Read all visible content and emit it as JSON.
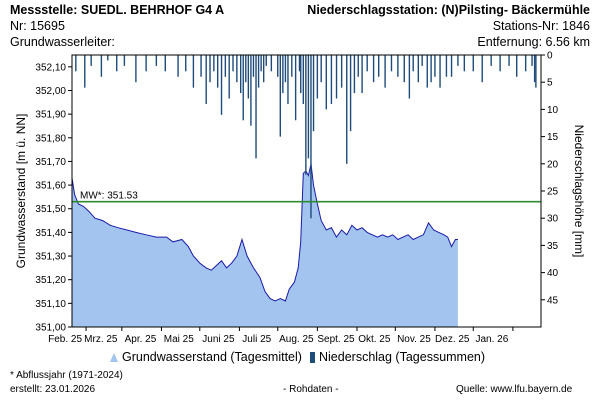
{
  "header": {
    "station_label": "Messstelle: SUEDL. BEHRHOF G4 A",
    "number": "Nr: 15695",
    "aquifer": "Grundwasserleiter:",
    "precip_station": "Niederschlagsstation: (N)Pilsting- Bäckermühle",
    "precip_station_nr": "Stations-Nr: 1846",
    "distance": "Entfernung: 6.56 km"
  },
  "footer": {
    "abfluss_note": "* Abflussjahr (1971-2024)",
    "created": "erstellt:  23.01.2026",
    "raw": "- Rohdaten -",
    "source": "Quelle:  www.lfu.bayern.de"
  },
  "colors": {
    "area_fill": "#a3c4ee",
    "area_line": "#1a1aa8",
    "precip": "#1e4b7a",
    "mean_line": "#2e8b2e"
  },
  "chart_data": {
    "type": "area",
    "xlabel": "",
    "ylabel": "Grundwasserstand [m ü. NN]",
    "y2label": "Niederschlagshöhe [mm]",
    "ylim": [
      351.0,
      352.15
    ],
    "y2lim": [
      0,
      50
    ],
    "y2_inverted": true,
    "yticks": [
      "352,10",
      "352,00",
      "351,90",
      "351,80",
      "351,70",
      "351,60",
      "351,50",
      "351,40",
      "351,30",
      "351,20",
      "351,10",
      "351,00"
    ],
    "y2ticks": [
      "0",
      "5",
      "10",
      "15",
      "20",
      "25",
      "30",
      "35",
      "40",
      "45"
    ],
    "xticks": [
      "Feb. 25",
      "Mrz. 25",
      "Apr. 25",
      "Mai 25",
      "Juni 25",
      "Juli 25",
      "Aug. 25",
      "Sept. 25",
      "Okt. 25",
      "Nov. 25",
      "Dez. 25",
      "Jan. 26"
    ],
    "xrange": [
      "2025-01-21",
      "2026-01-23"
    ],
    "mean_line": {
      "label": "MW*: 351.53",
      "value": 351.53
    },
    "series": [
      {
        "name": "Grundwasserstand (Tagesmittel)",
        "kind": "area",
        "points": [
          [
            "2025-01-21",
            351.63
          ],
          [
            "2025-01-23",
            351.56
          ],
          [
            "2025-01-26",
            351.52
          ],
          [
            "2025-01-30",
            351.51
          ],
          [
            "2025-02-03",
            351.49
          ],
          [
            "2025-02-08",
            351.46
          ],
          [
            "2025-02-14",
            351.45
          ],
          [
            "2025-02-20",
            351.43
          ],
          [
            "2025-02-26",
            351.42
          ],
          [
            "2025-03-05",
            351.41
          ],
          [
            "2025-03-12",
            351.4
          ],
          [
            "2025-03-20",
            351.39
          ],
          [
            "2025-03-28",
            351.38
          ],
          [
            "2025-04-05",
            351.38
          ],
          [
            "2025-04-10",
            351.36
          ],
          [
            "2025-04-17",
            351.37
          ],
          [
            "2025-04-22",
            351.34
          ],
          [
            "2025-04-26",
            351.3
          ],
          [
            "2025-05-01",
            351.27
          ],
          [
            "2025-05-06",
            351.25
          ],
          [
            "2025-05-10",
            351.24
          ],
          [
            "2025-05-14",
            351.26
          ],
          [
            "2025-05-18",
            351.28
          ],
          [
            "2025-05-22",
            351.25
          ],
          [
            "2025-05-26",
            351.27
          ],
          [
            "2025-05-30",
            351.3
          ],
          [
            "2025-06-03",
            351.37
          ],
          [
            "2025-06-07",
            351.3
          ],
          [
            "2025-06-12",
            351.25
          ],
          [
            "2025-06-17",
            351.21
          ],
          [
            "2025-06-21",
            351.15
          ],
          [
            "2025-06-25",
            351.12
          ],
          [
            "2025-06-29",
            351.11
          ],
          [
            "2025-07-03",
            351.12
          ],
          [
            "2025-07-07",
            351.11
          ],
          [
            "2025-07-10",
            351.16
          ],
          [
            "2025-07-14",
            351.19
          ],
          [
            "2025-07-17",
            351.25
          ],
          [
            "2025-07-19",
            351.36
          ],
          [
            "2025-07-21",
            351.65
          ],
          [
            "2025-07-23",
            351.66
          ],
          [
            "2025-07-25",
            351.64
          ],
          [
            "2025-07-27",
            351.69
          ],
          [
            "2025-07-29",
            351.6
          ],
          [
            "2025-08-01",
            351.52
          ],
          [
            "2025-08-04",
            351.45
          ],
          [
            "2025-08-08",
            351.41
          ],
          [
            "2025-08-12",
            351.42
          ],
          [
            "2025-08-16",
            351.38
          ],
          [
            "2025-08-20",
            351.41
          ],
          [
            "2025-08-24",
            351.39
          ],
          [
            "2025-08-28",
            351.43
          ],
          [
            "2025-09-01",
            351.41
          ],
          [
            "2025-09-05",
            351.42
          ],
          [
            "2025-09-09",
            351.4
          ],
          [
            "2025-09-13",
            351.39
          ],
          [
            "2025-09-17",
            351.38
          ],
          [
            "2025-09-21",
            351.39
          ],
          [
            "2025-09-25",
            351.38
          ],
          [
            "2025-09-29",
            351.39
          ],
          [
            "2025-10-03",
            351.37
          ],
          [
            "2025-10-07",
            351.38
          ],
          [
            "2025-10-11",
            351.39
          ],
          [
            "2025-10-15",
            351.37
          ],
          [
            "2025-10-19",
            351.38
          ],
          [
            "2025-10-23",
            351.39
          ],
          [
            "2025-10-27",
            351.44
          ],
          [
            "2025-10-31",
            351.41
          ],
          [
            "2025-11-04",
            351.4
          ],
          [
            "2025-11-08",
            351.39
          ],
          [
            "2025-11-11",
            351.38
          ],
          [
            "2025-11-14",
            351.34
          ],
          [
            "2025-11-17",
            351.37
          ],
          [
            "2025-11-19",
            351.37
          ]
        ]
      },
      {
        "name": "Niederschlag (Tagessummen)",
        "kind": "bar",
        "y_axis": "right",
        "points": [
          [
            "2025-01-24",
            3
          ],
          [
            "2025-01-31",
            6
          ],
          [
            "2025-02-05",
            2
          ],
          [
            "2025-02-13",
            4
          ],
          [
            "2025-02-18",
            1
          ],
          [
            "2025-02-25",
            3
          ],
          [
            "2025-03-03",
            2
          ],
          [
            "2025-03-12",
            5
          ],
          [
            "2025-03-20",
            3
          ],
          [
            "2025-03-28",
            2
          ],
          [
            "2025-04-04",
            3
          ],
          [
            "2025-04-14",
            4
          ],
          [
            "2025-04-20",
            3
          ],
          [
            "2025-04-26",
            6
          ],
          [
            "2025-05-02",
            4
          ],
          [
            "2025-05-06",
            9
          ],
          [
            "2025-05-09",
            5
          ],
          [
            "2025-05-12",
            3
          ],
          [
            "2025-05-15",
            6
          ],
          [
            "2025-05-18",
            11
          ],
          [
            "2025-05-21",
            4
          ],
          [
            "2025-05-24",
            8
          ],
          [
            "2025-05-27",
            3
          ],
          [
            "2025-05-30",
            5
          ],
          [
            "2025-06-02",
            7
          ],
          [
            "2025-06-04",
            12
          ],
          [
            "2025-06-06",
            5
          ],
          [
            "2025-06-08",
            8
          ],
          [
            "2025-06-10",
            13
          ],
          [
            "2025-06-12",
            4
          ],
          [
            "2025-06-14",
            19
          ],
          [
            "2025-06-16",
            6
          ],
          [
            "2025-06-18",
            3
          ],
          [
            "2025-06-20",
            5
          ],
          [
            "2025-06-22",
            2
          ],
          [
            "2025-06-26",
            3
          ],
          [
            "2025-07-01",
            4
          ],
          [
            "2025-07-03",
            15
          ],
          [
            "2025-07-05",
            7
          ],
          [
            "2025-07-07",
            5
          ],
          [
            "2025-07-09",
            9
          ],
          [
            "2025-07-12",
            4
          ],
          [
            "2025-07-15",
            12
          ],
          [
            "2025-07-18",
            3
          ],
          [
            "2025-07-19",
            7
          ],
          [
            "2025-07-21",
            9
          ],
          [
            "2025-07-23",
            22
          ],
          [
            "2025-07-25",
            19
          ],
          [
            "2025-07-27",
            30
          ],
          [
            "2025-07-29",
            14
          ],
          [
            "2025-08-01",
            8
          ],
          [
            "2025-08-04",
            5
          ],
          [
            "2025-08-08",
            10
          ],
          [
            "2025-08-12",
            9
          ],
          [
            "2025-08-16",
            8
          ],
          [
            "2025-08-20",
            6
          ],
          [
            "2025-08-24",
            20
          ],
          [
            "2025-08-27",
            14
          ],
          [
            "2025-08-30",
            7
          ],
          [
            "2025-09-02",
            4
          ],
          [
            "2025-09-05",
            7
          ],
          [
            "2025-09-09",
            3
          ],
          [
            "2025-09-14",
            5
          ],
          [
            "2025-09-18",
            4
          ],
          [
            "2025-09-23",
            6
          ],
          [
            "2025-09-28",
            3
          ],
          [
            "2025-10-03",
            4
          ],
          [
            "2025-10-08",
            5
          ],
          [
            "2025-10-12",
            8
          ],
          [
            "2025-10-15",
            3
          ],
          [
            "2025-10-19",
            5
          ],
          [
            "2025-10-22",
            2
          ],
          [
            "2025-10-26",
            6
          ],
          [
            "2025-10-29",
            5
          ],
          [
            "2025-11-01",
            4
          ],
          [
            "2025-11-05",
            6
          ],
          [
            "2025-11-10",
            4
          ],
          [
            "2025-11-14",
            4
          ],
          [
            "2025-11-19",
            2
          ],
          [
            "2025-11-24",
            3
          ],
          [
            "2025-12-01",
            3
          ],
          [
            "2025-12-08",
            5
          ],
          [
            "2025-12-15",
            2
          ],
          [
            "2025-12-22",
            3
          ],
          [
            "2025-12-29",
            2
          ],
          [
            "2026-01-04",
            4
          ],
          [
            "2026-01-11",
            3
          ],
          [
            "2026-01-16",
            2
          ],
          [
            "2026-01-18",
            5
          ],
          [
            "2026-01-19",
            6
          ]
        ]
      }
    ]
  }
}
